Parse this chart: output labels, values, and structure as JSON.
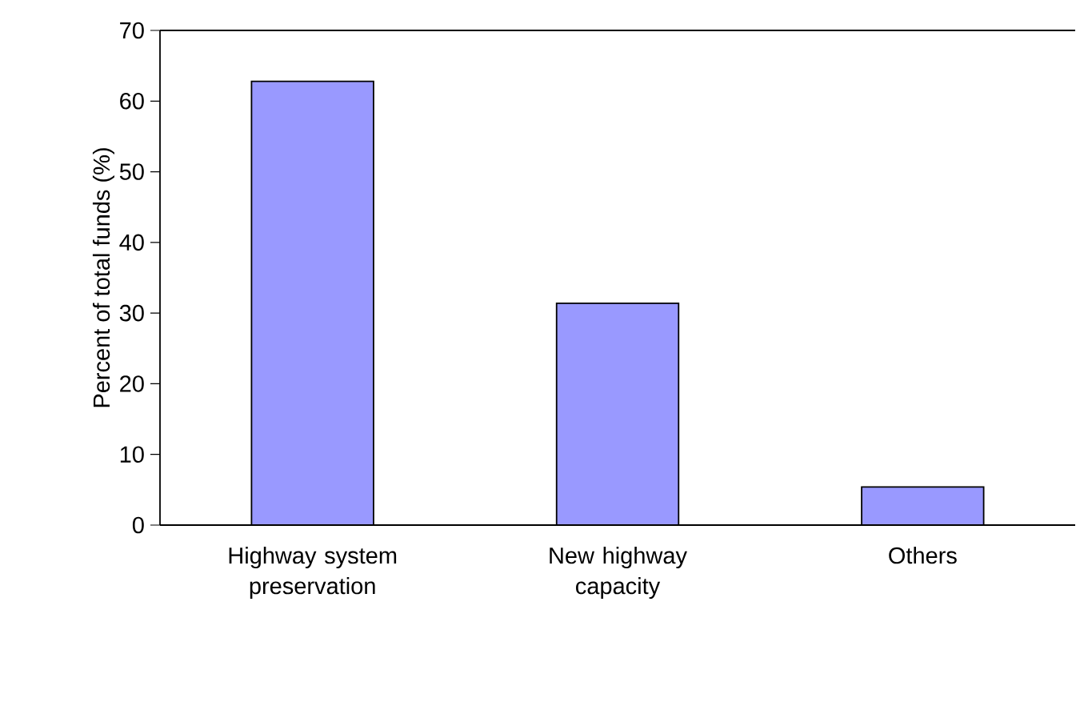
{
  "chart_data": {
    "type": "bar",
    "ylabel": "Percent of total funds (%)",
    "categories": [
      "Highway system preservation",
      "New highway capacity",
      "Others"
    ],
    "values": [
      62.8,
      31.4,
      5.4
    ],
    "color": "#9999ff",
    "ylim": [
      0,
      70
    ],
    "yticks": [
      0,
      10,
      20,
      30,
      40,
      50,
      60,
      70
    ],
    "grid": false
  }
}
